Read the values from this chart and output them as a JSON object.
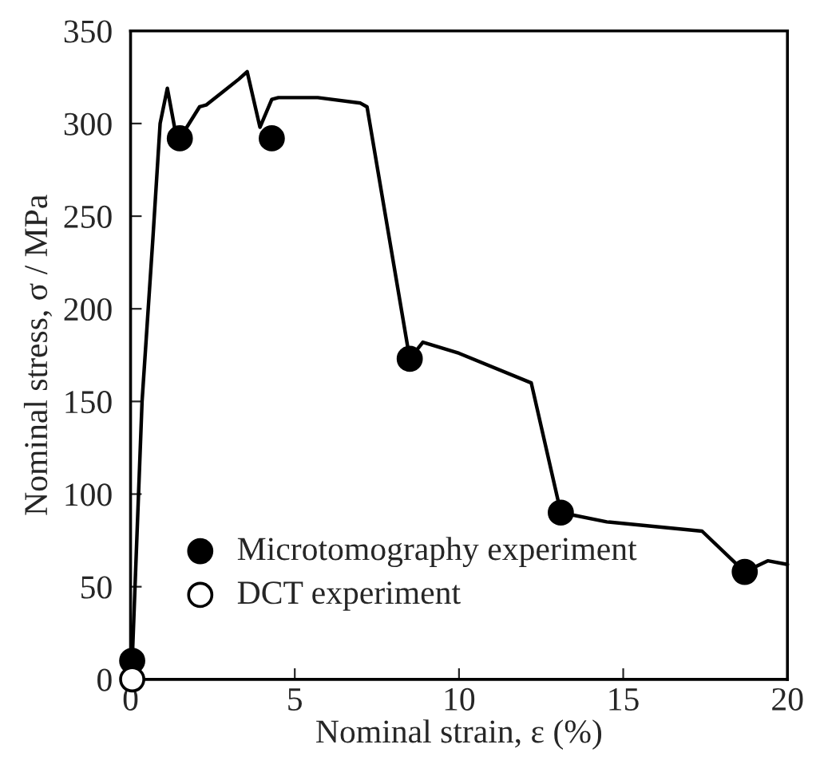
{
  "chart_data": {
    "type": "line",
    "xlabel": "Nominal strain, ε (%)",
    "ylabel": "Nominal stress, σ / MPa",
    "xlim": [
      0,
      20
    ],
    "ylim": [
      0,
      350
    ],
    "xticks": [
      0,
      5,
      10,
      15,
      20
    ],
    "yticks": [
      0,
      50,
      100,
      150,
      200,
      250,
      300,
      350
    ],
    "grid": false,
    "legend": "bottom left",
    "series": [
      {
        "color": "#000000",
        "marker": "none",
        "x": [
          0.05,
          0.35,
          0.68,
          0.9,
          1.12,
          1.36,
          1.5,
          2.1,
          2.3,
          2.8,
          3.3,
          3.55,
          3.94,
          4.3,
          4.5,
          5.7,
          7.0,
          7.2,
          8.5,
          8.9,
          10.0,
          12.2,
          13.1,
          14.5,
          17.4,
          18.7,
          19.4,
          20.0
        ],
        "values": [
          10,
          150,
          238,
          300,
          319,
          296,
          292,
          309,
          310,
          317,
          324,
          328,
          298,
          313,
          314,
          314,
          311,
          309,
          173,
          182,
          176,
          160,
          90,
          85,
          80,
          58,
          64,
          62
        ]
      },
      {
        "type": "scatter",
        "name": "Microtomography experiment",
        "color": "#000000",
        "marker": "circle",
        "x": [
          0.05,
          1.5,
          4.3,
          8.5,
          13.1,
          18.7
        ],
        "values": [
          10,
          292,
          292,
          173,
          90,
          58
        ]
      },
      {
        "type": "scatter",
        "name": "DCT experiment",
        "color": "#ffffff",
        "marker": "circle",
        "x": [
          0.05
        ],
        "values": [
          0
        ]
      }
    ]
  }
}
